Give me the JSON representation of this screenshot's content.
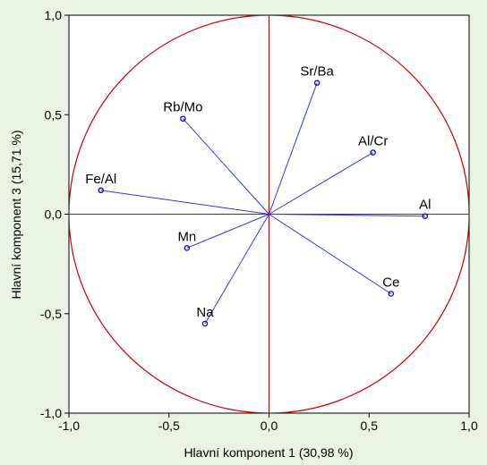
{
  "chart_data": {
    "type": "scatter",
    "title": "",
    "xlabel": "Hlavní komponent 1  (30,98 %)",
    "ylabel": "Hlavní komponent 3 (15,71 %)",
    "xlim": [
      -1.0,
      1.0
    ],
    "ylim": [
      -1.0,
      1.0
    ],
    "x_ticks": [
      "-1,0",
      "-0,5",
      "0,0",
      "0,5",
      "1,0"
    ],
    "y_ticks": [
      "1,0",
      "0,5",
      "0,0",
      "-0,5",
      "-1,0"
    ],
    "grid": false,
    "unit_circle": true,
    "points": [
      {
        "label": "Sr/Ba",
        "x": 0.24,
        "y": 0.66
      },
      {
        "label": "Rb/Mo",
        "x": -0.43,
        "y": 0.48
      },
      {
        "label": "Al/Cr",
        "x": 0.52,
        "y": 0.31
      },
      {
        "label": "Fe/Al",
        "x": -0.84,
        "y": 0.12
      },
      {
        "label": "Al",
        "x": 0.78,
        "y": -0.01
      },
      {
        "label": "Mn",
        "x": -0.41,
        "y": -0.17
      },
      {
        "label": "Ce",
        "x": 0.61,
        "y": -0.4
      },
      {
        "label": "Na",
        "x": -0.32,
        "y": -0.55
      }
    ],
    "colors": {
      "background": "#eaf3e3",
      "plot_background": "#ffffff",
      "axis_lines": "#cc0000",
      "circle": "#cc0000",
      "vectors": "#3333ee",
      "markers": "#0000cc"
    }
  }
}
